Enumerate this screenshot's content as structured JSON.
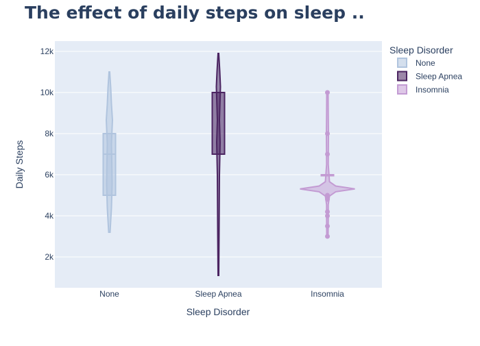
{
  "chart_data": {
    "type": "violin",
    "title": "The effect of daily steps on sleep ..",
    "xlabel": "Sleep Disorder",
    "ylabel": "Daily Steps",
    "categories": [
      "None",
      "Sleep Apnea",
      "Insomnia"
    ],
    "y_ticks": [
      2000,
      4000,
      6000,
      8000,
      10000,
      12000
    ],
    "y_tick_labels": [
      "2k",
      "4k",
      "6k",
      "8k",
      "10k",
      "12k"
    ],
    "ylim": [
      500,
      12500
    ],
    "grid": true,
    "legend": {
      "title": "Sleep Disorder",
      "placement": "right"
    },
    "series": [
      {
        "name": "None",
        "color": "#b0c4de",
        "min": 3200,
        "q1": 5000,
        "median": 7000,
        "q3": 8000,
        "max": 11000,
        "points": []
      },
      {
        "name": "Sleep Apnea",
        "color": "#4b2461",
        "min": 1100,
        "q1": 7000,
        "median": 10000,
        "q3": 10000,
        "max": 11900,
        "points": []
      },
      {
        "name": "Insomnia",
        "color": "#c39bd3",
        "min": 3000,
        "q1": 6000,
        "median": 6000,
        "q3": 6000,
        "max": 10000,
        "points": [
          3000,
          3500,
          4000,
          4200,
          4800,
          5000,
          7000,
          8000,
          10000
        ]
      }
    ]
  }
}
